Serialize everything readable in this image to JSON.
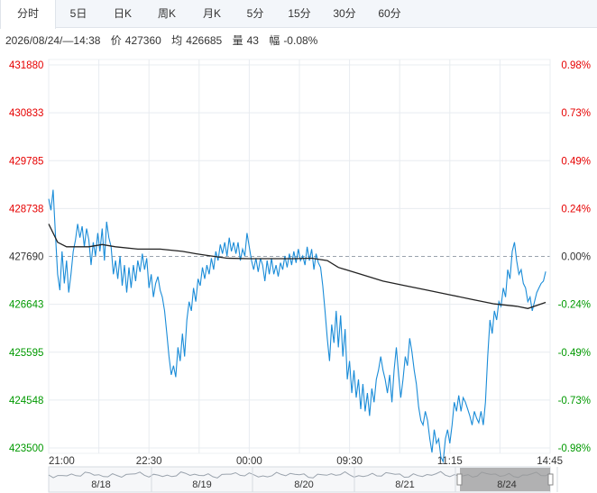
{
  "tabs": [
    {
      "label": "分时",
      "active": true
    },
    {
      "label": "5日",
      "active": false
    },
    {
      "label": "日K",
      "active": false
    },
    {
      "label": "周K",
      "active": false
    },
    {
      "label": "月K",
      "active": false
    },
    {
      "label": "5分",
      "active": false
    },
    {
      "label": "15分",
      "active": false
    },
    {
      "label": "30分",
      "active": false
    },
    {
      "label": "60分",
      "active": false
    }
  ],
  "info": {
    "datetime": "2026/08/24/—14:38",
    "price_label": "价",
    "price_value": "427360",
    "avg_label": "均",
    "avg_value": "426685",
    "volume_label": "量",
    "volume_value": "43",
    "change_label": "幅",
    "change_value": "-0.08%"
  },
  "colors": {
    "up": "#e60000",
    "down": "#009900",
    "flat": "#333333",
    "price_line": "#1a8cd8",
    "avg_line": "#222222",
    "grid": "#e8ecf0",
    "nav_window": "#9a9a9a"
  },
  "chart_data": {
    "type": "line",
    "reference_price": 427690,
    "y_ticks": [
      "431880",
      "430833",
      "429785",
      "428738",
      "427690",
      "426643",
      "425595",
      "424548",
      "423500"
    ],
    "y_tick_values": [
      431880,
      430833,
      429785,
      428738,
      427690,
      426643,
      425595,
      424548,
      423500
    ],
    "pct_ticks": [
      "0.98%",
      "0.73%",
      "0.49%",
      "0.24%",
      "0.00%",
      "-0.24%",
      "-0.49%",
      "-0.73%",
      "-0.98%"
    ],
    "ylim": [
      423500,
      431880
    ],
    "x_ticks": [
      {
        "label": "21:00",
        "t": 0
      },
      {
        "label": "22:30",
        "t": 90
      },
      {
        "label": "00:00",
        "t": 180
      },
      {
        "label": "09:30",
        "t": 270
      },
      {
        "label": "11:15",
        "t": 360
      },
      {
        "label": "14:45",
        "t": 450
      }
    ],
    "x_range": [
      0,
      450
    ],
    "series": [
      {
        "values": [
          [
            0,
            428950
          ],
          [
            1,
            428700
          ],
          [
            2,
            429150
          ],
          [
            3,
            428200
          ],
          [
            4,
            427300
          ],
          [
            5,
            426950
          ],
          [
            6,
            427800
          ],
          [
            7,
            427100
          ],
          [
            8,
            427600
          ],
          [
            9,
            426900
          ],
          [
            10,
            427300
          ],
          [
            11,
            427800
          ],
          [
            12,
            428050
          ],
          [
            13,
            428400
          ],
          [
            14,
            428100
          ],
          [
            15,
            428350
          ],
          [
            16,
            427900
          ],
          [
            17,
            428300
          ],
          [
            18,
            428050
          ],
          [
            19,
            427500
          ],
          [
            20,
            428000
          ],
          [
            21,
            427700
          ],
          [
            22,
            428200
          ],
          [
            23,
            427800
          ],
          [
            24,
            428300
          ],
          [
            25,
            427600
          ],
          [
            26,
            428450
          ],
          [
            27,
            428100
          ],
          [
            28,
            427900
          ],
          [
            29,
            427300
          ],
          [
            30,
            427600
          ],
          [
            31,
            427200
          ],
          [
            32,
            427700
          ],
          [
            33,
            427050
          ],
          [
            34,
            427500
          ],
          [
            35,
            426900
          ],
          [
            36,
            427450
          ],
          [
            37,
            427000
          ],
          [
            38,
            427500
          ],
          [
            39,
            427150
          ],
          [
            40,
            427600
          ],
          [
            41,
            427350
          ],
          [
            42,
            427750
          ],
          [
            43,
            427400
          ],
          [
            44,
            427650
          ],
          [
            45,
            427000
          ],
          [
            46,
            427300
          ],
          [
            47,
            426800
          ],
          [
            48,
            427100
          ],
          [
            49,
            427250
          ],
          [
            50,
            426950
          ],
          [
            51,
            426800
          ],
          [
            52,
            426500
          ],
          [
            53,
            426000
          ],
          [
            54,
            425500
          ],
          [
            55,
            425100
          ],
          [
            56,
            425300
          ],
          [
            57,
            425050
          ],
          [
            58,
            425700
          ],
          [
            59,
            425400
          ],
          [
            60,
            426000
          ],
          [
            61,
            425500
          ],
          [
            62,
            426300
          ],
          [
            63,
            426700
          ],
          [
            64,
            426500
          ],
          [
            65,
            427000
          ],
          [
            66,
            426700
          ],
          [
            67,
            427200
          ],
          [
            68,
            427050
          ],
          [
            69,
            427450
          ],
          [
            70,
            427200
          ],
          [
            71,
            427500
          ],
          [
            72,
            427300
          ],
          [
            73,
            427650
          ],
          [
            74,
            427400
          ],
          [
            75,
            427800
          ],
          [
            76,
            427600
          ],
          [
            77,
            427950
          ],
          [
            78,
            427750
          ],
          [
            79,
            428000
          ],
          [
            80,
            427700
          ],
          [
            81,
            428100
          ],
          [
            82,
            427800
          ],
          [
            83,
            428000
          ],
          [
            84,
            427750
          ],
          [
            85,
            428000
          ],
          [
            86,
            427600
          ],
          [
            87,
            427850
          ],
          [
            88,
            427700
          ],
          [
            89,
            428200
          ],
          [
            90,
            427900
          ],
          [
            91,
            427600
          ],
          [
            92,
            427400
          ],
          [
            93,
            427650
          ],
          [
            94,
            427350
          ],
          [
            95,
            427650
          ],
          [
            96,
            427500
          ],
          [
            97,
            427150
          ],
          [
            98,
            427600
          ],
          [
            99,
            427300
          ],
          [
            100,
            427650
          ],
          [
            101,
            427300
          ],
          [
            102,
            427500
          ],
          [
            103,
            427250
          ],
          [
            104,
            427550
          ],
          [
            105,
            427400
          ],
          [
            106,
            427700
          ],
          [
            107,
            427450
          ],
          [
            108,
            427750
          ],
          [
            109,
            427500
          ],
          [
            110,
            427800
          ],
          [
            111,
            427550
          ],
          [
            112,
            427850
          ],
          [
            113,
            427600
          ],
          [
            114,
            427700
          ],
          [
            115,
            427500
          ],
          [
            116,
            427900
          ],
          [
            117,
            427600
          ],
          [
            118,
            427850
          ],
          [
            119,
            427400
          ],
          [
            120,
            427750
          ],
          [
            121,
            427550
          ],
          [
            122,
            427450
          ],
          [
            123,
            427050
          ],
          [
            124,
            426500
          ],
          [
            125,
            425900
          ],
          [
            126,
            425400
          ],
          [
            127,
            426200
          ],
          [
            128,
            425800
          ],
          [
            129,
            426500
          ],
          [
            130,
            425700
          ],
          [
            131,
            426400
          ],
          [
            132,
            425500
          ],
          [
            133,
            426100
          ],
          [
            134,
            425000
          ],
          [
            135,
            425400
          ],
          [
            136,
            424700
          ],
          [
            137,
            425200
          ],
          [
            138,
            424600
          ],
          [
            139,
            425000
          ],
          [
            140,
            424350
          ],
          [
            141,
            424900
          ],
          [
            142,
            424300
          ],
          [
            143,
            424700
          ],
          [
            144,
            424200
          ],
          [
            145,
            424800
          ],
          [
            146,
            424500
          ],
          [
            147,
            425000
          ],
          [
            148,
            425200
          ],
          [
            149,
            425500
          ],
          [
            150,
            425200
          ],
          [
            151,
            425000
          ],
          [
            152,
            424700
          ],
          [
            153,
            425100
          ],
          [
            154,
            424500
          ],
          [
            155,
            425200
          ],
          [
            156,
            425700
          ],
          [
            157,
            425100
          ],
          [
            158,
            424600
          ],
          [
            159,
            425000
          ],
          [
            160,
            425500
          ],
          [
            161,
            425300
          ],
          [
            162,
            425900
          ],
          [
            163,
            425600
          ],
          [
            164,
            425200
          ],
          [
            165,
            424900
          ],
          [
            166,
            424400
          ],
          [
            167,
            424100
          ],
          [
            168,
            424000
          ],
          [
            169,
            424300
          ],
          [
            170,
            424100
          ],
          [
            171,
            423700
          ],
          [
            172,
            423400
          ],
          [
            173,
            423900
          ],
          [
            174,
            423600
          ],
          [
            175,
            423700
          ],
          [
            176,
            423300
          ],
          [
            177,
            423200
          ],
          [
            178,
            423700
          ],
          [
            179,
            423900
          ],
          [
            180,
            423600
          ],
          [
            181,
            424000
          ],
          [
            182,
            424500
          ],
          [
            183,
            424300
          ],
          [
            184,
            424650
          ],
          [
            185,
            424300
          ],
          [
            186,
            424600
          ],
          [
            187,
            424500
          ],
          [
            188,
            424350
          ],
          [
            189,
            424200
          ],
          [
            190,
            424000
          ],
          [
            191,
            424300
          ],
          [
            192,
            424150
          ],
          [
            193,
            424050
          ],
          [
            194,
            424300
          ],
          [
            195,
            424000
          ],
          [
            196,
            424500
          ],
          [
            197,
            425500
          ],
          [
            198,
            426300
          ],
          [
            199,
            426000
          ],
          [
            200,
            426500
          ],
          [
            201,
            426300
          ],
          [
            202,
            426700
          ],
          [
            203,
            426600
          ],
          [
            204,
            427000
          ],
          [
            205,
            426800
          ],
          [
            206,
            427400
          ],
          [
            207,
            427200
          ],
          [
            208,
            427800
          ],
          [
            209,
            428000
          ],
          [
            210,
            427600
          ],
          [
            211,
            427300
          ],
          [
            212,
            427400
          ],
          [
            213,
            427100
          ],
          [
            214,
            427000
          ],
          [
            215,
            426700
          ],
          [
            216,
            426800
          ],
          [
            217,
            426500
          ],
          [
            218,
            426700
          ],
          [
            219,
            426900
          ],
          [
            220,
            427000
          ],
          [
            221,
            427100
          ],
          [
            222,
            427150
          ],
          [
            223,
            427360
          ]
        ]
      },
      {
        "values": [
          [
            0,
            428400
          ],
          [
            4,
            428000
          ],
          [
            8,
            427900
          ],
          [
            12,
            427900
          ],
          [
            18,
            427900
          ],
          [
            24,
            427950
          ],
          [
            30,
            427900
          ],
          [
            40,
            427850
          ],
          [
            50,
            427850
          ],
          [
            60,
            427800
          ],
          [
            66,
            427750
          ],
          [
            70,
            427720
          ],
          [
            80,
            427650
          ],
          [
            90,
            427640
          ],
          [
            100,
            427640
          ],
          [
            110,
            427640
          ],
          [
            118,
            427650
          ],
          [
            125,
            427600
          ],
          [
            130,
            427450
          ],
          [
            140,
            427300
          ],
          [
            150,
            427150
          ],
          [
            160,
            427050
          ],
          [
            170,
            426950
          ],
          [
            180,
            426850
          ],
          [
            190,
            426750
          ],
          [
            200,
            426650
          ],
          [
            210,
            426600
          ],
          [
            215,
            426550
          ],
          [
            223,
            426685
          ]
        ]
      }
    ],
    "nav_labels": [
      "8/18",
      "8/19",
      "8/20",
      "8/21",
      "8/24"
    ]
  }
}
